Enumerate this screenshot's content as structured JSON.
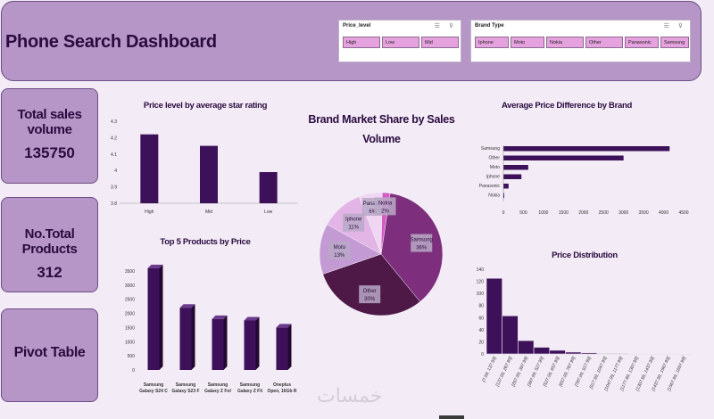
{
  "header": {
    "title": "Phone Search Dashboard"
  },
  "slicers": {
    "price_level": {
      "title": "Price_level",
      "icons": "☰ ⊽",
      "items": [
        "High",
        "Low",
        "Mid"
      ]
    },
    "brand_type": {
      "title": "Brand Type",
      "icons": "☰ ⊽",
      "items": [
        "Iphone",
        "Moto",
        "Nokia",
        "Other",
        "Panasonic",
        "Samsung"
      ]
    }
  },
  "kpis": {
    "total_sales": {
      "label": "Total sales volume",
      "value": "135750"
    },
    "total_products": {
      "label": "No.Total Products",
      "value": "312"
    },
    "pivot": {
      "label": "Pivot Table"
    }
  },
  "watermark": "خمسات",
  "chart_data": [
    {
      "type": "bar",
      "title": "Price level by average star rating",
      "categories": [
        "High",
        "Mid",
        "Low"
      ],
      "values": [
        4.22,
        4.15,
        3.99
      ],
      "ylim": [
        3.8,
        4.3
      ],
      "yticks": [
        "4.3",
        "4.2",
        "4.1",
        "4",
        "3.9",
        "3.8"
      ]
    },
    {
      "type": "bar",
      "title": "Top 5 Products by Price",
      "categories": [
        "Samsung Galaxy S24 C",
        "Samsung Galaxy S23 F",
        "Samsung Galaxy Z Fol",
        "Samsung Galaxy Z Fli",
        "Oneplus Open, 16Gb R"
      ],
      "category_lines": [
        [
          "Samsung",
          "Galaxy S24 C"
        ],
        [
          "Samsung",
          "Galaxy S23 F"
        ],
        [
          "Samsung",
          "Galaxy Z Fol"
        ],
        [
          "Samsung",
          "Galaxy Z Fli"
        ],
        [
          "Oneplus",
          "Open, 16Gb R"
        ]
      ],
      "values": [
        3600,
        2200,
        1800,
        1750,
        1500
      ],
      "ylim": [
        0,
        3500
      ],
      "yticks": [
        "3500",
        "3000",
        "2500",
        "2000",
        "1500",
        "1000",
        "500",
        "0"
      ]
    },
    {
      "type": "pie",
      "title": "Brand Market Share by Sales Volume",
      "title_lines": [
        "Brand Market Share by Sales",
        "Volume"
      ],
      "slices": [
        {
          "name": "Samsung",
          "value": 36,
          "label": "36%",
          "color": "#7d2f7d"
        },
        {
          "name": "Other",
          "value": 30,
          "label": "30%",
          "color": "#4e1847"
        },
        {
          "name": "Moto",
          "value": 13,
          "label": "13%",
          "color": "#c39ad4"
        },
        {
          "name": "Iphone",
          "value": 11,
          "label": "11%",
          "color": "#e3b5e6"
        },
        {
          "name": "Panasonic",
          "value": 6,
          "label": "6%",
          "display": "Panasor",
          "color": "#f0d6f2"
        },
        {
          "name": "Nokia",
          "value": 2,
          "label": "2%",
          "color": "#d25cc3"
        }
      ]
    },
    {
      "type": "bar",
      "orientation": "horizontal",
      "title": "Average Price Difference by Brand",
      "categories": [
        "Samsung",
        "Other",
        "Moto",
        "Iphone",
        "Panasonic",
        "Nokia"
      ],
      "values": [
        4150,
        3000,
        620,
        450,
        130,
        20
      ],
      "xlim": [
        0,
        4500
      ],
      "xticks": [
        "0",
        "500",
        "1000",
        "1500",
        "2000",
        "2500",
        "3000",
        "3500",
        "4000",
        "4500"
      ]
    },
    {
      "type": "bar",
      "title": "Price Distribution",
      "categories": [
        "[7.99, 137.99]",
        "[137.99, 267.99]",
        "[267.99, 397.99]",
        "[397.99, 527.99]",
        "[527.99, 657.99]",
        "[657.99, 787.99]",
        "[787.99, 917.99]",
        "[917.99, 1047.99]",
        "[1047.99, 1177.99]",
        "[1177.99, 1307.99]",
        "[1307.99, 1437.99]",
        "[1437.99, 1567.99]",
        "[1567.99, 1697.99]"
      ],
      "values": [
        125,
        63,
        22,
        11,
        6,
        3,
        2,
        1,
        1,
        0.5,
        0.5,
        0.5,
        0.5
      ],
      "ylim": [
        0,
        140
      ],
      "yticks": [
        "140",
        "120",
        "100",
        "80",
        "60",
        "40",
        "20",
        "0"
      ]
    }
  ]
}
